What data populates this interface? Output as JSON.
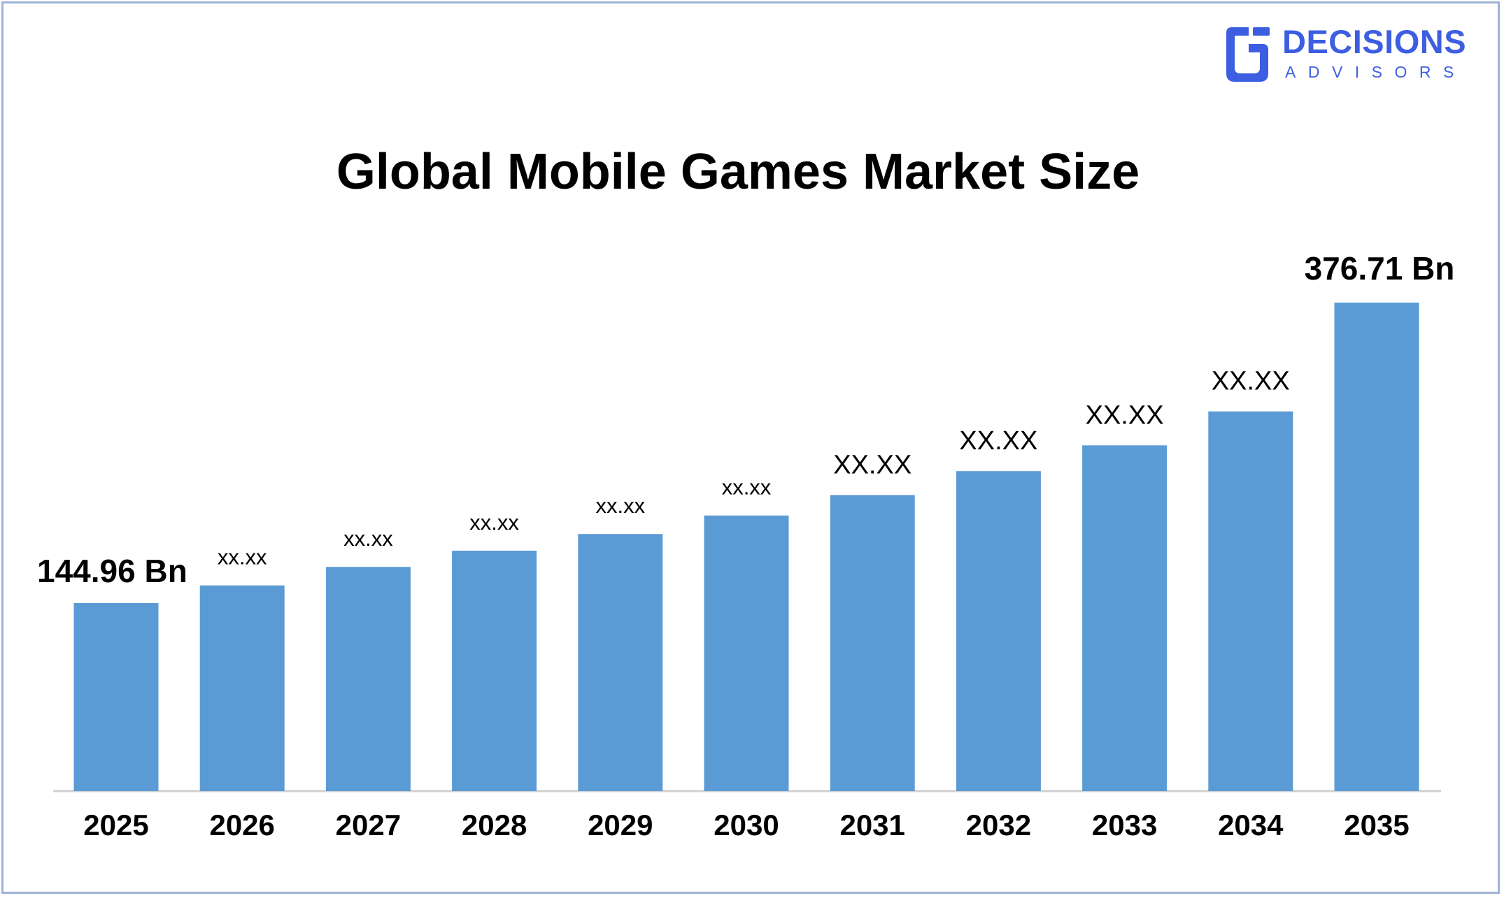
{
  "brand": {
    "name_line1": "DECISIONS",
    "name_line2": "ADVISORS",
    "color": "#3d5ee1"
  },
  "chart_data": {
    "type": "bar",
    "title": "Global Mobile Games Market Size",
    "xlabel": "",
    "ylabel": "",
    "categories": [
      "2025",
      "2026",
      "2027",
      "2028",
      "2029",
      "2030",
      "2031",
      "2032",
      "2033",
      "2034",
      "2035"
    ],
    "values": [
      144.96,
      158.6,
      172.9,
      185.4,
      198.2,
      212.5,
      228.3,
      246.7,
      266.6,
      292.8,
      376.71
    ],
    "data_labels": [
      "144.96 Bn",
      "xx.xx",
      "xx.xx",
      "xx.xx",
      "xx.xx",
      "xx.xx",
      "XX.XX",
      "XX.XX",
      "XX.XX",
      "XX.XX",
      "376.71 Bn"
    ],
    "ylim": [
      0,
      376.71
    ],
    "grid": false,
    "legend": "none",
    "bar_color": "#5b9bd5",
    "axis_color": "#d0d0d0"
  }
}
